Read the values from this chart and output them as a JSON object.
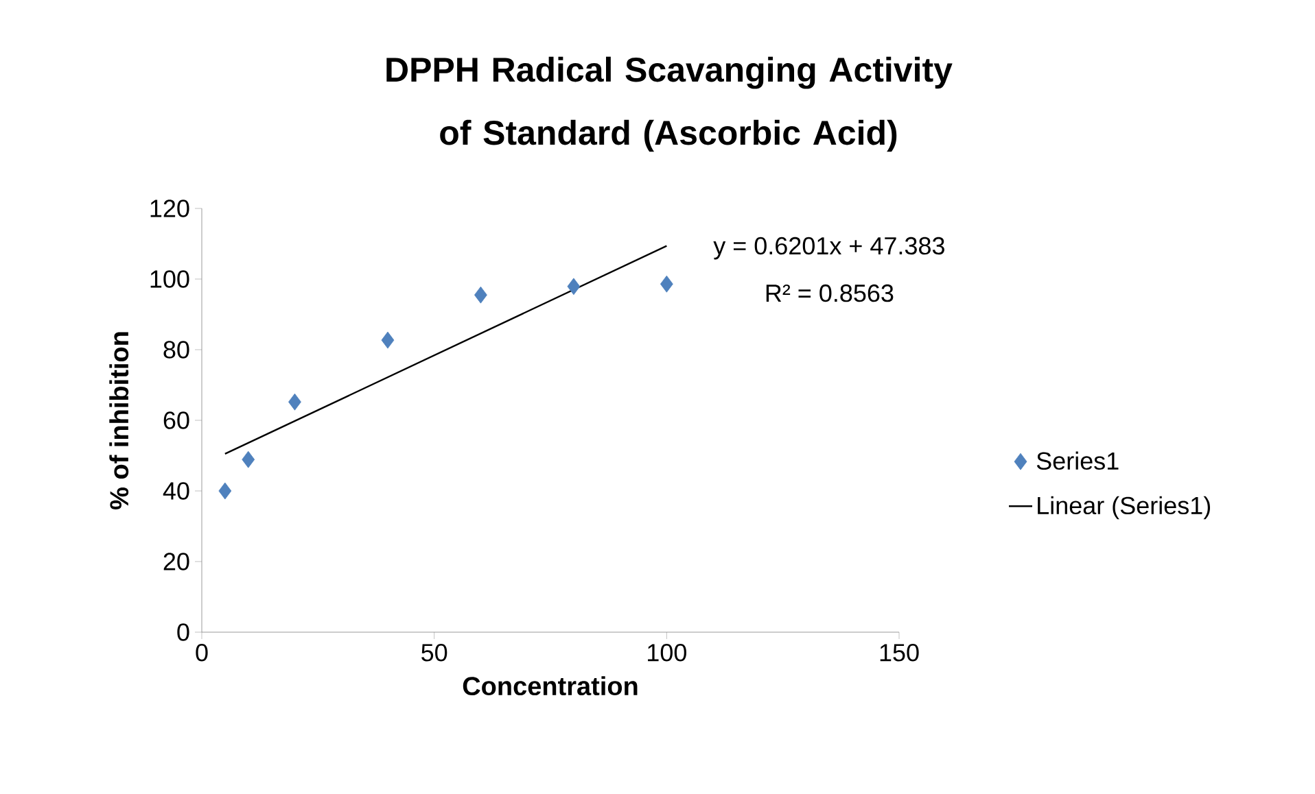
{
  "chart_data": {
    "type": "scatter",
    "title": "DPPH Radical Scavanging Activity of Standard (Ascorbic Acid)",
    "xlabel": "Concentration",
    "ylabel": "% of inhibition",
    "annotations": [
      "y = 0.6201x + 47.383",
      "R² = 0.8563"
    ],
    "series": [
      {
        "name": "Series1",
        "color": "#4f81bd",
        "marker": "diamond",
        "x": [
          5,
          10,
          20,
          40,
          60,
          80,
          100
        ],
        "values": [
          40,
          48.9,
          65.2,
          82.7,
          95.5,
          97.9,
          98.6
        ]
      },
      {
        "name": "Linear (Series1)",
        "type": "line",
        "color": "#000000",
        "x": [
          5,
          100
        ],
        "values": [
          50.5,
          109.4
        ]
      }
    ],
    "xlim": [
      0,
      150
    ],
    "ylim": [
      0,
      120
    ],
    "xticks": [
      0,
      50,
      100,
      150
    ],
    "yticks": [
      0,
      20,
      40,
      60,
      80,
      100,
      120
    ],
    "legend": "right"
  }
}
